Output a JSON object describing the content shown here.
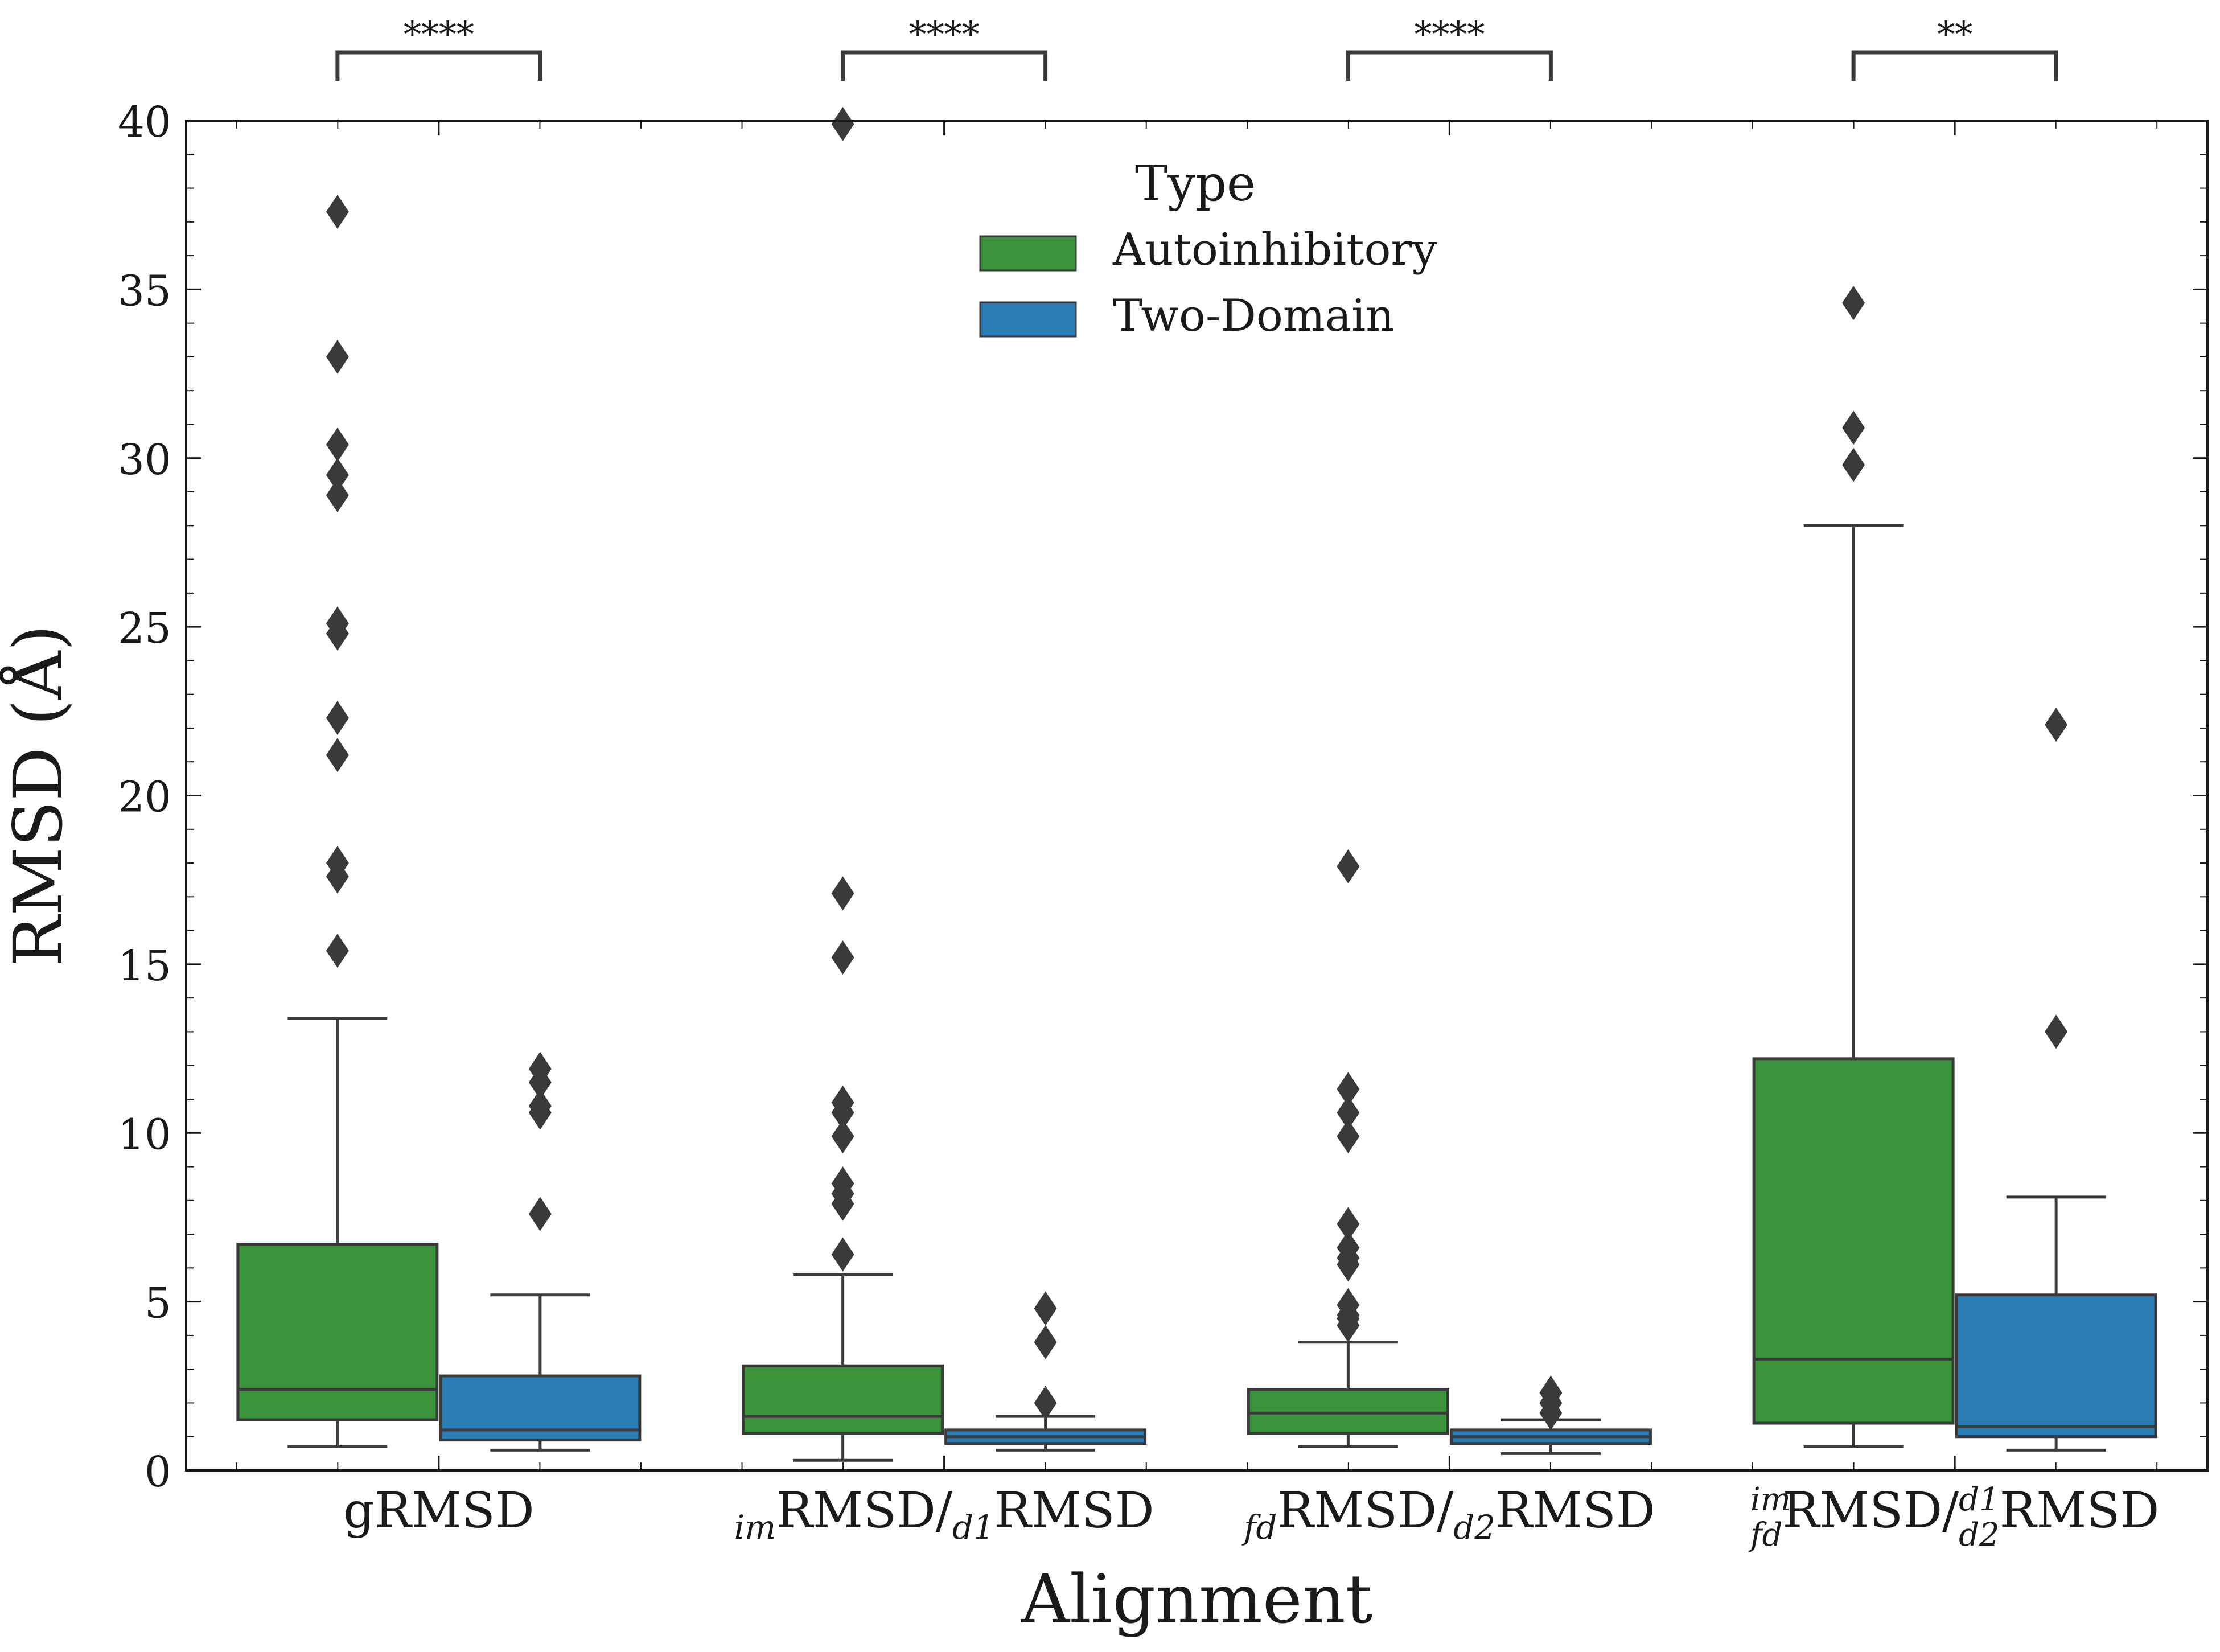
{
  "chart_data": {
    "type": "box",
    "xlabel": "Alignment",
    "ylabel": "RMSD (Å)",
    "ylim": [
      0,
      40
    ],
    "yticks": [
      0,
      5,
      10,
      15,
      20,
      25,
      30,
      35,
      40
    ],
    "grid": false,
    "legend": {
      "title": "Type",
      "placement": "top-center",
      "entries": [
        {
          "label": "Autoinhibitory",
          "color": "#3a923a"
        },
        {
          "label": "Two-Domain",
          "color": "#2d7db5"
        }
      ]
    },
    "categories": [
      {
        "label": {
          "main": "gRMSD"
        },
        "significance": "****"
      },
      {
        "label": {
          "sub1": "im",
          "main1": "RMSD/",
          "sub2": "d1",
          "main2": "RMSD"
        },
        "significance": "****"
      },
      {
        "label": {
          "sub1": "fd",
          "main1": "RMSD/",
          "sub2": "d2",
          "main2": "RMSD"
        },
        "significance": "****"
      },
      {
        "label": {
          "sup1": "im",
          "sub1": "fd",
          "main1": "RMSD/",
          "sup2": "d1",
          "sub2": "d2",
          "main2": "RMSD"
        },
        "significance": "**"
      }
    ],
    "series": [
      {
        "name": "Autoinhibitory",
        "color": "#3a923a",
        "boxes": [
          {
            "whisker_low": 0.7,
            "q1": 1.5,
            "median": 2.4,
            "q3": 6.7,
            "whisker_high": 13.4,
            "outliers": [
              37.3,
              33.0,
              30.4,
              29.5,
              28.9,
              25.1,
              24.8,
              22.3,
              21.2,
              18.0,
              17.6,
              15.4
            ]
          },
          {
            "whisker_low": 0.3,
            "q1": 1.1,
            "median": 1.6,
            "q3": 3.1,
            "whisker_high": 5.8,
            "outliers": [
              39.9,
              17.1,
              15.2,
              10.9,
              10.6,
              9.9,
              8.5,
              8.2,
              7.9,
              6.4
            ]
          },
          {
            "whisker_low": 0.7,
            "q1": 1.1,
            "median": 1.7,
            "q3": 2.4,
            "whisker_high": 3.8,
            "outliers": [
              17.9,
              11.3,
              10.6,
              9.9,
              7.3,
              6.6,
              6.3,
              6.1,
              4.9,
              4.6,
              4.5,
              4.3
            ]
          },
          {
            "whisker_low": 0.7,
            "q1": 1.4,
            "median": 3.3,
            "q3": 12.2,
            "whisker_high": 28.0,
            "outliers": [
              34.6,
              30.9,
              29.8
            ]
          }
        ]
      },
      {
        "name": "Two-Domain",
        "color": "#2d7db5",
        "boxes": [
          {
            "whisker_low": 0.6,
            "q1": 0.9,
            "median": 1.2,
            "q3": 2.8,
            "whisker_high": 5.2,
            "outliers": [
              11.9,
              11.5,
              10.8,
              10.6,
              7.6
            ]
          },
          {
            "whisker_low": 0.6,
            "q1": 0.8,
            "median": 1.0,
            "q3": 1.2,
            "whisker_high": 1.6,
            "outliers": [
              4.8,
              3.8,
              2.0
            ]
          },
          {
            "whisker_low": 0.5,
            "q1": 0.8,
            "median": 1.0,
            "q3": 1.2,
            "whisker_high": 1.5,
            "outliers": [
              2.3,
              2.0,
              1.7
            ]
          },
          {
            "whisker_low": 0.6,
            "q1": 1.0,
            "median": 1.3,
            "q3": 5.2,
            "whisker_high": 8.1,
            "outliers": [
              22.1,
              13.0
            ]
          }
        ]
      }
    ]
  }
}
